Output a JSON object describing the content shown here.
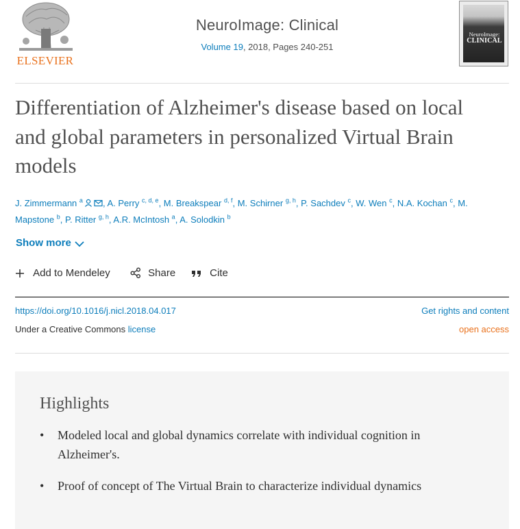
{
  "publisher": {
    "logo_text": "ELSEVIER",
    "icon": "elsevier-tree-logo"
  },
  "journal": {
    "title": "NeuroImage: Clinical",
    "volume_link": "Volume 19",
    "meta_rest": ", 2018, Pages 240-251",
    "cover_line1": "NeuroImage:",
    "cover_line2": "CLINICAL"
  },
  "article": {
    "title": "Differentiation of Alzheimer's disease based on local and global parameters in personalized Virtual Brain models",
    "authors": [
      {
        "name": "J. Zimmermann",
        "sup": "a",
        "icons": [
          "person-icon",
          "email-icon"
        ]
      },
      {
        "name": "A. Perry",
        "sup": "c, d, e"
      },
      {
        "name": "M. Breakspear",
        "sup": "d, f"
      },
      {
        "name": "M. Schirner",
        "sup": "g, h"
      },
      {
        "name": "P. Sachdev",
        "sup": "c"
      },
      {
        "name": "W. Wen",
        "sup": "c"
      },
      {
        "name": "N.A. Kochan",
        "sup": "c"
      },
      {
        "name": "M. Mapstone",
        "sup": "b"
      },
      {
        "name": "P. Ritter",
        "sup": "g, h"
      },
      {
        "name": "A.R. McIntosh",
        "sup": "a"
      },
      {
        "name": "A. Solodkin",
        "sup": "b"
      }
    ],
    "show_more": "Show more",
    "actions": {
      "mendeley": "Add to Mendeley",
      "share": "Share",
      "cite": "Cite"
    },
    "doi": "https://doi.org/10.1016/j.nicl.2018.04.017",
    "rights": "Get rights and content",
    "license_prefix": "Under a Creative Commons ",
    "license_link": "license",
    "open_access": "open access"
  },
  "highlights": {
    "title": "Highlights",
    "bullet": "•",
    "items": [
      "Modeled local and global dynamics correlate with individual cognition in Alzheimer's.",
      "Proof of concept of The Virtual Brain to characterize individual dynamics"
    ]
  },
  "colors": {
    "link": "#0c7dbb",
    "accent": "#e9711c",
    "text": "#2e2e2e",
    "highlight_bg": "#f5f5f5"
  }
}
